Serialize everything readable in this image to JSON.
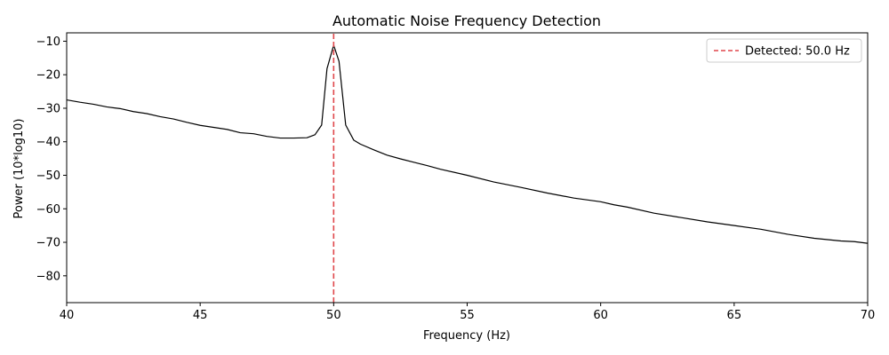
{
  "chart_data": {
    "type": "line",
    "title": "Automatic Noise Frequency Detection",
    "xlabel": "Frequency (Hz)",
    "ylabel": "Power (10*log10)",
    "xlim": [
      40,
      70
    ],
    "ylim": [
      -88,
      -7.5
    ],
    "xticks": [
      40,
      45,
      50,
      55,
      60,
      65,
      70
    ],
    "yticks": [
      -80,
      -70,
      -60,
      -50,
      -40,
      -30,
      -20,
      -10
    ],
    "xtick_labels": [
      "40",
      "45",
      "50",
      "55",
      "60",
      "65",
      "70"
    ],
    "ytick_labels": [
      "−80",
      "−70",
      "−60",
      "−50",
      "−40",
      "−30",
      "−20",
      "−10"
    ],
    "grid": false,
    "legend_position": "top-right",
    "series": [
      {
        "color": "#000000",
        "style": "solid",
        "x": [
          40,
          40.5,
          41,
          41.5,
          42,
          42.5,
          43,
          43.5,
          44,
          44.5,
          45,
          45.5,
          46,
          46.5,
          47,
          47.5,
          48,
          48.5,
          49,
          49.3,
          49.55,
          49.75,
          50,
          50.2,
          50.45,
          50.75,
          51,
          51.5,
          52,
          52.5,
          53,
          53.5,
          54,
          55,
          56,
          57,
          58,
          59,
          60,
          60.5,
          61,
          62,
          63,
          64,
          65,
          66,
          67,
          68,
          69,
          69.5,
          70
        ],
        "y": [
          -27.5,
          -28.2,
          -28.8,
          -29.6,
          -30.1,
          -31,
          -31.6,
          -32.5,
          -33.2,
          -34.2,
          -35.1,
          -35.7,
          -36.3,
          -37.3,
          -37.6,
          -38.4,
          -38.9,
          -38.9,
          -38.8,
          -37.9,
          -35,
          -18.2,
          -11.2,
          -16,
          -35,
          -39.5,
          -40.7,
          -42.4,
          -44,
          -45.1,
          -46.1,
          -47.1,
          -48.2,
          -50,
          -52,
          -53.6,
          -55.3,
          -56.8,
          -57.9,
          -58.8,
          -59.5,
          -61.3,
          -62.6,
          -63.9,
          -65,
          -66.1,
          -67.6,
          -68.8,
          -69.6,
          -69.8,
          -70.3
        ]
      },
      {
        "name": "Detected: 50.0 Hz",
        "color": "#e0474c",
        "style": "dashed",
        "x": [
          50,
          50
        ],
        "y": [
          -88,
          -7.5
        ]
      }
    ]
  }
}
